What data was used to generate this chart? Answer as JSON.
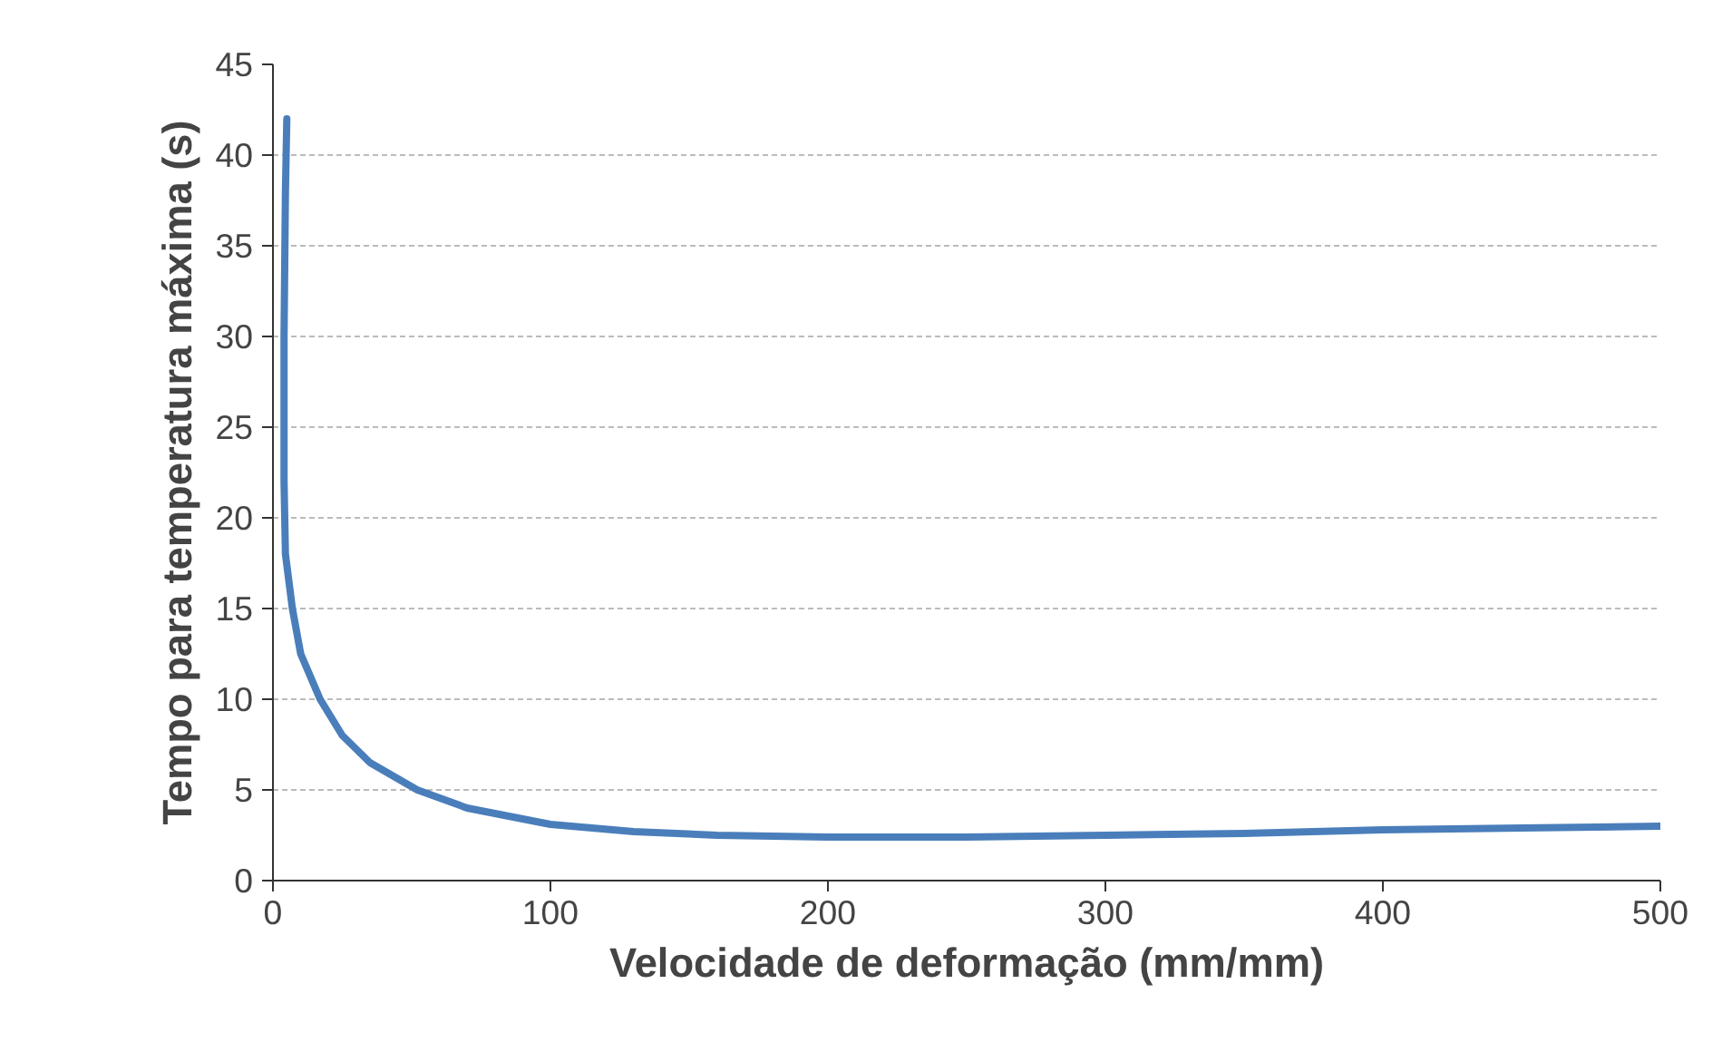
{
  "chart_data": {
    "type": "line",
    "xlabel": "Velocidade de deformação (mm/mm)",
    "ylabel": "Tempo para temperatura máxima (s)",
    "x": [
      5,
      4.5,
      4,
      4,
      4.5,
      7,
      10,
      17,
      25,
      35,
      52,
      70,
      100,
      130,
      160,
      200,
      250,
      300,
      350,
      400,
      450,
      500
    ],
    "series": [
      {
        "color": "#4a7ebb",
        "values": [
          42,
          38,
          30,
          22,
          18,
          15,
          12.5,
          10,
          8,
          6.5,
          5,
          4,
          3.1,
          2.7,
          2.5,
          2.4,
          2.4,
          2.5,
          2.6,
          2.8,
          2.9,
          3.0
        ]
      }
    ],
    "xlim": [
      0,
      500
    ],
    "xticks": [
      0,
      100,
      200,
      300,
      400,
      500
    ],
    "ylim": [
      0,
      45
    ],
    "yticks": [
      0,
      5,
      10,
      15,
      20,
      25,
      30,
      35,
      40,
      45
    ],
    "grid": "y",
    "marker": "none",
    "line_style": "solid"
  }
}
